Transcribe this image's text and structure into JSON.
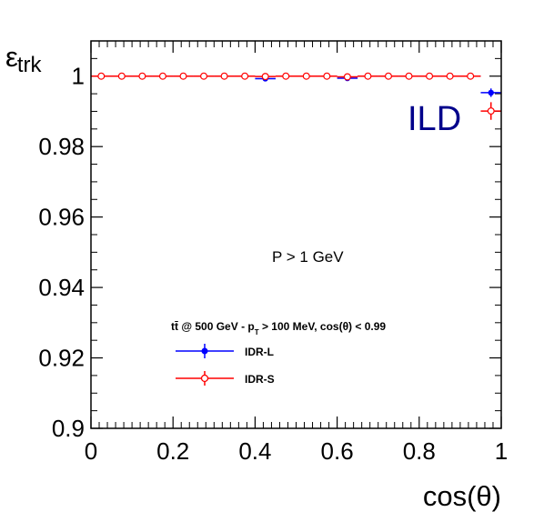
{
  "chart_data": {
    "type": "scatter",
    "xlabel": "cos(θ)",
    "ylabel_main": "ε",
    "ylabel_sub": "trk",
    "xlim": [
      0,
      1
    ],
    "ylim": [
      0.9,
      1.01
    ],
    "x_ticks": [
      0,
      0.2,
      0.4,
      0.6,
      0.8,
      1
    ],
    "x_tick_labels": [
      "0",
      "0.2",
      "0.4",
      "0.6",
      "0.8",
      "1"
    ],
    "y_ticks": [
      0.9,
      0.92,
      0.94,
      0.96,
      0.98,
      1
    ],
    "y_tick_labels": [
      "0.9",
      "0.92",
      "0.94",
      "0.96",
      "0.98",
      "1"
    ],
    "legend_header": {
      "pre": "t",
      "bar": "t̄",
      "mid": " @ 500 GeV - p",
      "sub": "T",
      "post": " > 100 MeV, cos(θ) < 0.99"
    },
    "annotation": "P > 1 GeV",
    "experiment_label": "ILD",
    "experiment_color": "#00008b",
    "series": [
      {
        "name": "IDR-L",
        "color": "#0000ff",
        "marker": "filled-circle",
        "x": [
          0.025,
          0.075,
          0.125,
          0.175,
          0.225,
          0.275,
          0.325,
          0.375,
          0.425,
          0.475,
          0.525,
          0.575,
          0.625,
          0.675,
          0.725,
          0.775,
          0.825,
          0.875,
          0.925,
          0.975
        ],
        "y": [
          1.0,
          1.0,
          1.0,
          1.0,
          1.0,
          1.0,
          1.0,
          1.0,
          0.9993,
          1.0,
          1.0,
          1.0,
          0.9994,
          1.0,
          1.0,
          1.0,
          1.0,
          1.0,
          1.0,
          0.9953
        ],
        "yerr": [
          0,
          0,
          0,
          0,
          0,
          0,
          0,
          0,
          0.0006,
          0,
          0,
          0,
          0.0005,
          0,
          0,
          0,
          0,
          0,
          0,
          0.0012
        ]
      },
      {
        "name": "IDR-S",
        "color": "#ff0000",
        "marker": "open-circle",
        "x": [
          0.025,
          0.075,
          0.125,
          0.175,
          0.225,
          0.275,
          0.325,
          0.375,
          0.425,
          0.475,
          0.525,
          0.575,
          0.625,
          0.675,
          0.725,
          0.775,
          0.825,
          0.875,
          0.925,
          0.975
        ],
        "y": [
          1.0,
          1.0,
          1.0,
          1.0,
          1.0,
          1.0,
          1.0,
          1.0,
          0.9999,
          1.0,
          1.0,
          1.0,
          0.9998,
          1.0,
          1.0,
          1.0,
          1.0,
          1.0,
          1.0,
          0.9901
        ],
        "yerr": [
          0,
          0,
          0,
          0,
          0,
          0,
          0,
          0,
          0.0002,
          0,
          0,
          0,
          0.0002,
          0,
          0,
          0,
          0,
          0,
          0,
          0.0025
        ]
      }
    ]
  }
}
